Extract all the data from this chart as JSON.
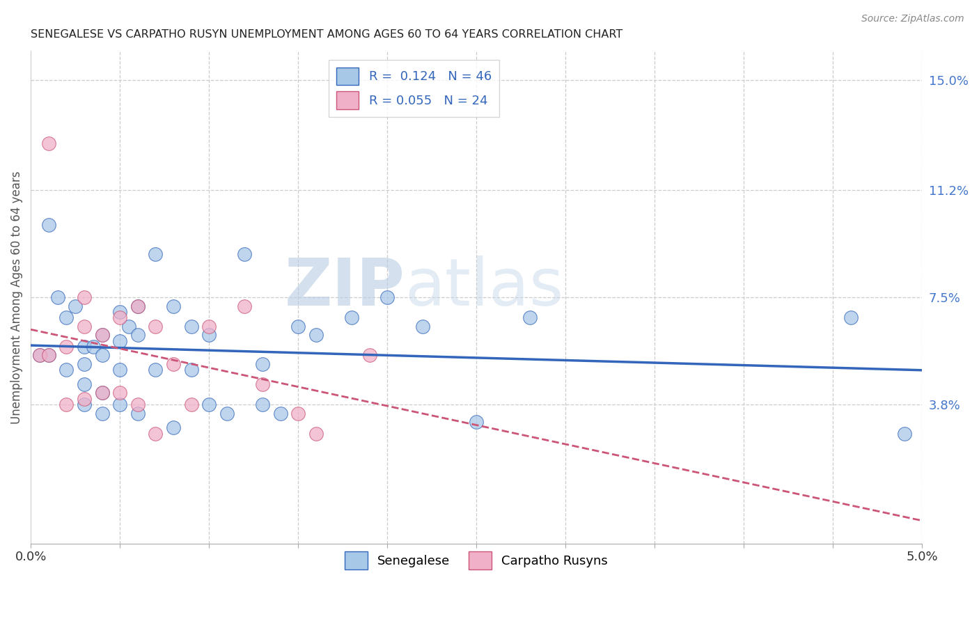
{
  "title": "SENEGALESE VS CARPATHO RUSYN UNEMPLOYMENT AMONG AGES 60 TO 64 YEARS CORRELATION CHART",
  "source": "Source: ZipAtlas.com",
  "ylabel": "Unemployment Among Ages 60 to 64 years",
  "xlim": [
    0.0,
    0.05
  ],
  "ylim": [
    -0.01,
    0.16
  ],
  "yplot_min": 0.0,
  "yplot_max": 0.15,
  "xticks": [
    0.0,
    0.005,
    0.01,
    0.015,
    0.02,
    0.025,
    0.03,
    0.035,
    0.04,
    0.045,
    0.05
  ],
  "xtick_labels": [
    "0.0%",
    "",
    "",
    "",
    "",
    "",
    "",
    "",
    "",
    "",
    "5.0%"
  ],
  "ytick_labels_right": [
    "3.8%",
    "7.5%",
    "11.2%",
    "15.0%"
  ],
  "ytick_values_right": [
    0.038,
    0.075,
    0.112,
    0.15
  ],
  "R_senegalese": 0.124,
  "N_senegalese": 46,
  "R_carpatho": 0.055,
  "N_carpatho": 24,
  "color_senegalese": "#a8c8e8",
  "color_carpatho": "#f0b0c8",
  "trend_color_senegalese": "#3366bb",
  "trend_color_carpatho": "#cc5577",
  "watermark_zip": "ZIP",
  "watermark_atlas": "atlas",
  "senegalese_x": [
    0.0005,
    0.001,
    0.001,
    0.0015,
    0.002,
    0.002,
    0.0025,
    0.003,
    0.003,
    0.003,
    0.003,
    0.0035,
    0.004,
    0.004,
    0.004,
    0.004,
    0.005,
    0.005,
    0.005,
    0.005,
    0.0055,
    0.006,
    0.006,
    0.006,
    0.007,
    0.007,
    0.008,
    0.008,
    0.009,
    0.009,
    0.01,
    0.01,
    0.011,
    0.012,
    0.013,
    0.013,
    0.014,
    0.015,
    0.016,
    0.018,
    0.02,
    0.022,
    0.025,
    0.028,
    0.046,
    0.049
  ],
  "senegalese_y": [
    0.055,
    0.1,
    0.055,
    0.075,
    0.068,
    0.05,
    0.072,
    0.058,
    0.052,
    0.045,
    0.038,
    0.058,
    0.062,
    0.055,
    0.042,
    0.035,
    0.07,
    0.06,
    0.05,
    0.038,
    0.065,
    0.072,
    0.062,
    0.035,
    0.09,
    0.05,
    0.072,
    0.03,
    0.065,
    0.05,
    0.062,
    0.038,
    0.035,
    0.09,
    0.052,
    0.038,
    0.035,
    0.065,
    0.062,
    0.068,
    0.075,
    0.065,
    0.032,
    0.068,
    0.068,
    0.028
  ],
  "carpatho_x": [
    0.0005,
    0.001,
    0.001,
    0.002,
    0.002,
    0.003,
    0.003,
    0.003,
    0.004,
    0.004,
    0.005,
    0.005,
    0.006,
    0.006,
    0.007,
    0.007,
    0.008,
    0.009,
    0.01,
    0.012,
    0.013,
    0.015,
    0.016,
    0.019
  ],
  "carpatho_y": [
    0.055,
    0.128,
    0.055,
    0.058,
    0.038,
    0.075,
    0.065,
    0.04,
    0.062,
    0.042,
    0.068,
    0.042,
    0.072,
    0.038,
    0.065,
    0.028,
    0.052,
    0.038,
    0.065,
    0.072,
    0.045,
    0.035,
    0.028,
    0.055
  ]
}
